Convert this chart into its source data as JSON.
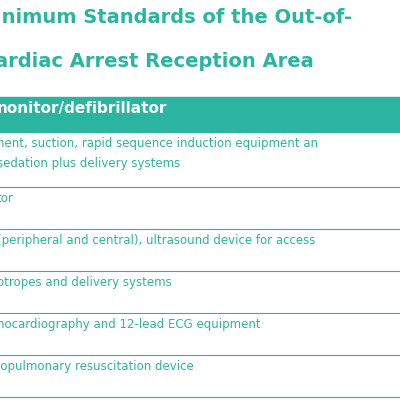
{
  "title_line1": "inimum Standards of the Out-of-",
  "title_line2": "ardiac Arrest Reception Area",
  "title_color": "#2BB5A0",
  "background_color": "#ffffff",
  "header_bg_color": "#2BB5A0",
  "header_text": "nonitor/defibrillator",
  "header_text_color": "#ffffff",
  "row_text_color": "#2BB5A0",
  "divider_color": "#2BB5A0",
  "rows": [
    [
      "nent, suction, rapid sequence induction equipment an",
      "sedation plus delivery systems"
    ],
    [
      "tor"
    ],
    [
      "(peripheral and central), ultrasound device for access"
    ],
    [
      "otropes and delivery systems"
    ],
    [
      "hocardiography and 12-lead ECG equipment"
    ],
    [
      "iopulmonary resuscitation device"
    ]
  ],
  "figsize": [
    4.0,
    4.0
  ],
  "dpi": 100
}
